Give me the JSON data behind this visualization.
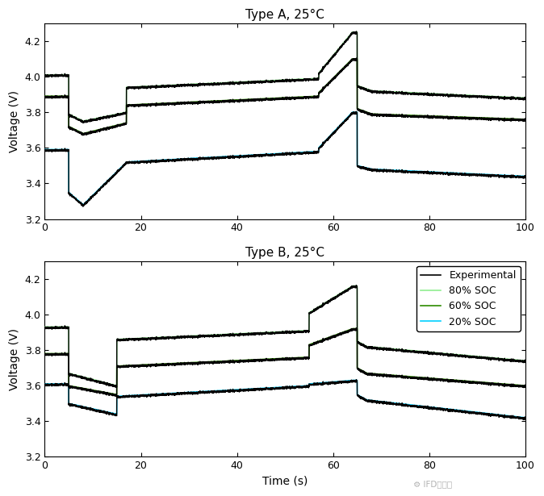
{
  "title_a": "Type A, 25°C",
  "title_b": "Type B, 25°C",
  "xlabel": "Time (s)",
  "ylabel": "Voltage (V)",
  "xlim": [
    0,
    100
  ],
  "ylim": [
    3.2,
    4.3
  ],
  "yticks": [
    3.2,
    3.4,
    3.6,
    3.8,
    4.0,
    4.2
  ],
  "xticks": [
    0,
    20,
    40,
    60,
    80,
    100
  ],
  "legend_labels": [
    "Experimental",
    "80% SOC",
    "60% SOC",
    "20% SOC"
  ],
  "colors": {
    "exp": "#000000",
    "soc80": "#90EE90",
    "soc60": "#2E8B00",
    "soc20": "#00CFFF"
  },
  "background": "#ffffff",
  "typeA": {
    "soc80": {
      "segments": [
        [
          0,
          4.01
        ],
        [
          5,
          4.01
        ],
        [
          5.001,
          3.79
        ],
        [
          8,
          3.75
        ],
        [
          17,
          3.8
        ],
        [
          17.001,
          3.94
        ],
        [
          57,
          3.99
        ],
        [
          57.001,
          4.02
        ],
        [
          64,
          4.25
        ],
        [
          65,
          4.25
        ],
        [
          65.001,
          3.95
        ],
        [
          68,
          3.92
        ],
        [
          100,
          3.88
        ]
      ]
    },
    "soc60": {
      "segments": [
        [
          0,
          3.89
        ],
        [
          5,
          3.89
        ],
        [
          5.001,
          3.72
        ],
        [
          8,
          3.68
        ],
        [
          17,
          3.74
        ],
        [
          17.001,
          3.84
        ],
        [
          57,
          3.89
        ],
        [
          57.001,
          3.91
        ],
        [
          64,
          4.1
        ],
        [
          65,
          4.1
        ],
        [
          65.001,
          3.82
        ],
        [
          68,
          3.79
        ],
        [
          100,
          3.76
        ]
      ]
    },
    "soc20": {
      "segments": [
        [
          0,
          3.59
        ],
        [
          5,
          3.59
        ],
        [
          5.001,
          3.35
        ],
        [
          8,
          3.28
        ],
        [
          17,
          3.52
        ],
        [
          17.001,
          3.52
        ],
        [
          57,
          3.58
        ],
        [
          57.001,
          3.6
        ],
        [
          64,
          3.8
        ],
        [
          65,
          3.8
        ],
        [
          65.001,
          3.5
        ],
        [
          68,
          3.48
        ],
        [
          100,
          3.44
        ]
      ]
    }
  },
  "typeB": {
    "soc80": {
      "segments": [
        [
          0,
          3.93
        ],
        [
          5,
          3.93
        ],
        [
          5.001,
          3.67
        ],
        [
          15,
          3.6
        ],
        [
          15.001,
          3.86
        ],
        [
          55,
          3.91
        ],
        [
          55.001,
          4.01
        ],
        [
          64,
          4.16
        ],
        [
          65,
          4.16
        ],
        [
          65.001,
          3.85
        ],
        [
          67,
          3.82
        ],
        [
          100,
          3.74
        ]
      ]
    },
    "soc60": {
      "segments": [
        [
          0,
          3.78
        ],
        [
          5,
          3.78
        ],
        [
          5.001,
          3.6
        ],
        [
          15,
          3.55
        ],
        [
          15.001,
          3.71
        ],
        [
          55,
          3.76
        ],
        [
          55.001,
          3.83
        ],
        [
          64,
          3.92
        ],
        [
          65,
          3.92
        ],
        [
          65.001,
          3.7
        ],
        [
          67,
          3.67
        ],
        [
          100,
          3.6
        ]
      ]
    },
    "soc20": {
      "segments": [
        [
          0,
          3.61
        ],
        [
          5,
          3.61
        ],
        [
          5.001,
          3.5
        ],
        [
          15,
          3.44
        ],
        [
          15.001,
          3.54
        ],
        [
          55,
          3.6
        ],
        [
          55.001,
          3.61
        ],
        [
          64,
          3.63
        ],
        [
          65,
          3.63
        ],
        [
          65.001,
          3.55
        ],
        [
          67,
          3.52
        ],
        [
          100,
          3.42
        ]
      ]
    }
  }
}
